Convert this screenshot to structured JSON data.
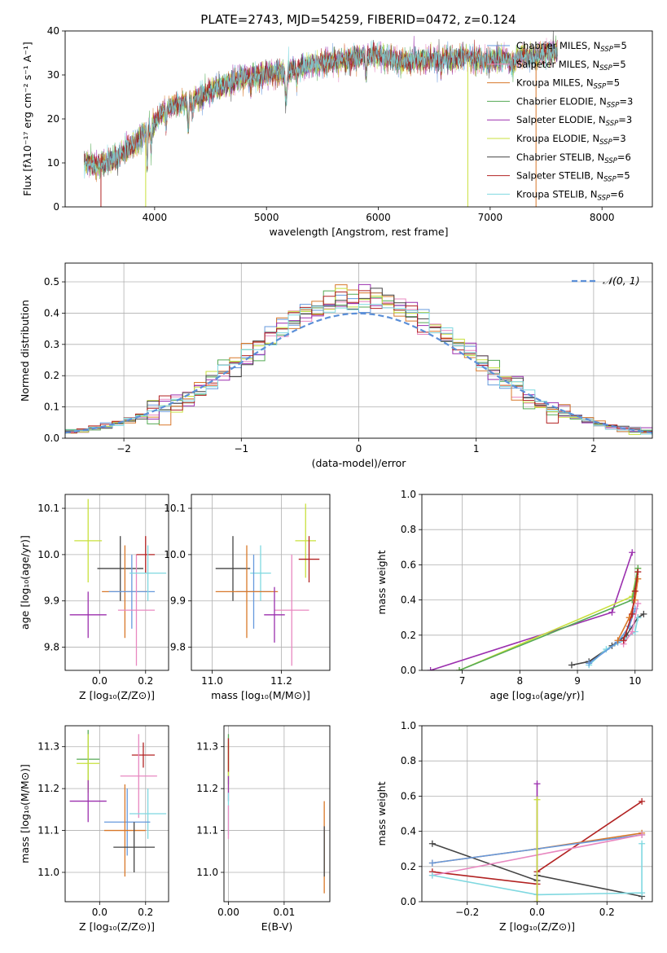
{
  "figure": {
    "title": "PLATE=2743, MJD=54259, FIBERID=0472, z=0.124"
  },
  "colors": {
    "Chabrier MILES": "#6699dd",
    "Salpeter MILES": "#e888c0",
    "Kroupa MILES": "#d8782a",
    "Chabrier ELODIE": "#55aa55",
    "Salpeter ELODIE": "#9b2fae",
    "Kroupa ELODIE": "#c8e03c",
    "Chabrier STELIB": "#444444",
    "Salpeter STELIB": "#b22222",
    "Kroupa STELIB": "#7fd8e0"
  },
  "chart_data": [
    {
      "type": "line",
      "xlabel": "wavelength [Angstrom, rest frame]",
      "ylabel": "Flux [fλ10⁻¹⁷ erg cm⁻² s⁻¹ A⁻¹]",
      "xlim": [
        3200,
        8450
      ],
      "ylim": [
        0,
        40
      ],
      "xticks": [
        4000,
        5000,
        6000,
        7000,
        8000
      ],
      "yticks": [
        0,
        10,
        20,
        30,
        40
      ],
      "legend_position": "top-right",
      "legend": [
        {
          "name": "Chabrier MILES",
          "label": "Chabrier MILES, N",
          "sub": "SSP",
          "tail": "=5"
        },
        {
          "name": "Salpeter MILES",
          "label": "Salpeter MILES, N",
          "sub": "SSP",
          "tail": "=5"
        },
        {
          "name": "Kroupa MILES",
          "label": "Kroupa MILES, N",
          "sub": "SSP",
          "tail": "=5"
        },
        {
          "name": "Chabrier ELODIE",
          "label": "Chabrier ELODIE, N",
          "sub": "SSP",
          "tail": "=3"
        },
        {
          "name": "Salpeter ELODIE",
          "label": "Salpeter ELODIE, N",
          "sub": "SSP",
          "tail": "=3"
        },
        {
          "name": "Kroupa ELODIE",
          "label": "Kroupa ELODIE, N",
          "sub": "SSP",
          "tail": "=3"
        },
        {
          "name": "Chabrier STELIB",
          "label": "Chabrier STELIB, N",
          "sub": "SSP",
          "tail": "=6"
        },
        {
          "name": "Salpeter STELIB",
          "label": "Salpeter STELIB, N",
          "sub": "SSP",
          "tail": "=5"
        },
        {
          "name": "Kroupa STELIB",
          "label": "Kroupa STELIB, N",
          "sub": "SSP",
          "tail": "=6"
        }
      ],
      "continuum": {
        "x": [
          3370,
          3500,
          3650,
          3750,
          3850,
          3950,
          4050,
          4150,
          4300,
          4400,
          4600,
          4800,
          5000,
          5200,
          5400,
          5600,
          5800,
          6000,
          6200,
          6400,
          6600,
          6800,
          7000,
          7200,
          7300,
          7400,
          7500,
          7600
        ],
        "y": [
          10,
          9.5,
          11,
          13,
          15,
          17.5,
          21,
          23,
          24,
          25,
          27.5,
          29.5,
          30,
          31,
          32.5,
          33,
          34,
          34.5,
          33,
          33.5,
          33.5,
          34,
          33,
          34,
          34.5,
          34,
          35,
          35.5
        ]
      },
      "cutoffs": [
        {
          "series": "Salpeter STELIB",
          "x": 3520
        },
        {
          "series": "Kroupa ELODIE",
          "x": 3920
        },
        {
          "series": "Kroupa ELODIE",
          "x": 6800
        },
        {
          "series": "Kroupa MILES",
          "x": 7410
        }
      ]
    },
    {
      "type": "step-histogram",
      "xlabel": "(data-model)/error",
      "ylabel": "Normed distribution",
      "xlim": [
        -2.5,
        2.5
      ],
      "ylim": [
        0,
        0.56
      ],
      "xticks": [
        -2,
        -1,
        0,
        1,
        2
      ],
      "yticks": [
        0.0,
        0.1,
        0.2,
        0.3,
        0.4,
        0.5
      ],
      "bin_width": 0.1,
      "legend_position": "top-right",
      "legend": [
        {
          "name": "N(0,1)",
          "label": "𝒩(0, 1)"
        }
      ],
      "reference_curve": {
        "name": "N(0,1)",
        "mean": 0,
        "sigma": 1,
        "style": "dashed"
      }
    },
    {
      "type": "scatter-errorbar",
      "xlabel": "Z [log₁₀(Z/Z⊙)]",
      "ylabel": "age  [log₁₀(age/yr)]",
      "xlim": [
        -0.15,
        0.3
      ],
      "ylim": [
        9.75,
        10.13
      ],
      "xticks": [
        0.0,
        0.2
      ],
      "yticks": [
        9.8,
        9.9,
        10.0,
        10.1
      ],
      "points": [
        {
          "series": "Kroupa ELODIE",
          "x": -0.05,
          "xerr": 0.06,
          "y": 10.03,
          "yerr": 0.09
        },
        {
          "series": "Salpeter ELODIE",
          "x": -0.05,
          "xerr": 0.08,
          "y": 9.87,
          "yerr": 0.05
        },
        {
          "series": "Chabrier STELIB",
          "x": 0.09,
          "xerr": 0.1,
          "y": 9.97,
          "yerr": 0.07
        },
        {
          "series": "Kroupa MILES",
          "x": 0.11,
          "xerr": 0.1,
          "y": 9.92,
          "yerr": 0.1
        },
        {
          "series": "Chabrier MILES",
          "x": 0.14,
          "xerr": 0.1,
          "y": 9.92,
          "yerr": 0.08
        },
        {
          "series": "Salpeter MILES",
          "x": 0.16,
          "xerr": 0.08,
          "y": 9.88,
          "yerr": 0.12
        },
        {
          "series": "Salpeter STELIB",
          "x": 0.2,
          "xerr": 0.04,
          "y": 10.0,
          "yerr": 0.04
        },
        {
          "series": "Kroupa STELIB",
          "x": 0.21,
          "xerr": 0.08,
          "y": 9.96,
          "yerr": 0.06
        }
      ]
    },
    {
      "type": "scatter-errorbar",
      "xlabel": "mass [log₁₀(M/M⊙)]",
      "ylabel": "",
      "xlim": [
        10.94,
        11.34
      ],
      "ylim": [
        9.75,
        10.13
      ],
      "xticks": [
        11.0,
        11.2
      ],
      "yticks": [
        9.8,
        9.9,
        10.0,
        10.1
      ],
      "points": [
        {
          "series": "Kroupa ELODIE",
          "x": 11.27,
          "xerr": 0.03,
          "y": 10.03,
          "yerr": 0.08
        },
        {
          "series": "Salpeter STELIB",
          "x": 11.28,
          "xerr": 0.03,
          "y": 9.99,
          "yerr": 0.05
        },
        {
          "series": "Chabrier STELIB",
          "x": 11.06,
          "xerr": 0.05,
          "y": 9.97,
          "yerr": 0.07
        },
        {
          "series": "Kroupa STELIB",
          "x": 11.14,
          "xerr": 0.03,
          "y": 9.96,
          "yerr": 0.06
        },
        {
          "series": "Chabrier MILES",
          "x": 11.12,
          "xerr": 0.05,
          "y": 9.92,
          "yerr": 0.08
        },
        {
          "series": "Kroupa MILES",
          "x": 11.1,
          "xerr": 0.09,
          "y": 9.92,
          "yerr": 0.1
        },
        {
          "series": "Salpeter MILES",
          "x": 11.23,
          "xerr": 0.05,
          "y": 9.88,
          "yerr": 0.12
        },
        {
          "series": "Salpeter ELODIE",
          "x": 11.18,
          "xerr": 0.03,
          "y": 9.87,
          "yerr": 0.06
        }
      ]
    },
    {
      "type": "line",
      "xlabel": "age  [log₁₀(age/yr)]",
      "ylabel": "mass weight",
      "xlim": [
        6.3,
        10.3
      ],
      "ylim": [
        0,
        1
      ],
      "xticks": [
        7,
        8,
        9,
        10
      ],
      "yticks": [
        0.0,
        0.2,
        0.4,
        0.6,
        0.8,
        1.0
      ],
      "series": [
        {
          "name": "Salpeter ELODIE",
          "x": [
            6.45,
            9.6,
            9.95
          ],
          "y": [
            0.0,
            0.33,
            0.67
          ]
        },
        {
          "name": "Kroupa ELODIE",
          "x": [
            6.95,
            9.95,
            10.05
          ],
          "y": [
            0.0,
            0.42,
            0.58
          ]
        },
        {
          "name": "Chabrier ELODIE",
          "x": [
            6.95,
            9.95,
            10.05
          ],
          "y": [
            0.0,
            0.4,
            0.58
          ]
        },
        {
          "name": "Chabrier STELIB",
          "x": [
            8.9,
            9.2,
            9.6,
            9.85,
            10.05,
            10.15
          ],
          "y": [
            0.03,
            0.05,
            0.14,
            0.2,
            0.3,
            0.32
          ]
        },
        {
          "name": "Kroupa STELIB",
          "x": [
            9.2,
            9.5,
            9.8,
            10.0,
            10.05
          ],
          "y": [
            0.03,
            0.12,
            0.17,
            0.22,
            0.3
          ]
        },
        {
          "name": "Chabrier MILES",
          "x": [
            9.2,
            9.7,
            9.9,
            10.0
          ],
          "y": [
            0.04,
            0.16,
            0.25,
            0.35
          ]
        },
        {
          "name": "Kroupa MILES",
          "x": [
            9.7,
            9.9,
            10.0,
            10.05
          ],
          "y": [
            0.17,
            0.3,
            0.4,
            0.52
          ]
        },
        {
          "name": "Salpeter MILES",
          "x": [
            9.8,
            9.95,
            10.05
          ],
          "y": [
            0.15,
            0.22,
            0.38
          ]
        },
        {
          "name": "Salpeter STELIB",
          "x": [
            9.8,
            9.95,
            10.0,
            10.05
          ],
          "y": [
            0.17,
            0.32,
            0.45,
            0.56
          ]
        }
      ]
    },
    {
      "type": "scatter-errorbar",
      "xlabel": "Z [log₁₀(Z/Z⊙)]",
      "ylabel": "mass [log₁₀(M/M⊙)]",
      "xlim": [
        -0.15,
        0.3
      ],
      "ylim": [
        10.93,
        11.35
      ],
      "xticks": [
        0.0,
        0.2
      ],
      "yticks": [
        11.0,
        11.1,
        11.2,
        11.3
      ],
      "points": [
        {
          "series": "Chabrier ELODIE",
          "x": -0.05,
          "xerr": 0.05,
          "y": 11.27,
          "yerr": 0.07
        },
        {
          "series": "Kroupa ELODIE",
          "x": -0.05,
          "xerr": 0.05,
          "y": 11.26,
          "yerr": 0.07
        },
        {
          "series": "Salpeter ELODIE",
          "x": -0.05,
          "xerr": 0.08,
          "y": 11.17,
          "yerr": 0.05
        },
        {
          "series": "Salpeter STELIB",
          "x": 0.19,
          "xerr": 0.05,
          "y": 11.28,
          "yerr": 0.03
        },
        {
          "series": "Salpeter MILES",
          "x": 0.17,
          "xerr": 0.08,
          "y": 11.23,
          "yerr": 0.1
        },
        {
          "series": "Kroupa STELIB",
          "x": 0.21,
          "xerr": 0.08,
          "y": 11.14,
          "yerr": 0.06
        },
        {
          "series": "Chabrier MILES",
          "x": 0.12,
          "xerr": 0.1,
          "y": 11.12,
          "yerr": 0.08
        },
        {
          "series": "Kroupa MILES",
          "x": 0.11,
          "xerr": 0.09,
          "y": 11.1,
          "yerr": 0.11
        },
        {
          "series": "Chabrier STELIB",
          "x": 0.15,
          "xerr": 0.09,
          "y": 11.06,
          "yerr": 0.06
        }
      ]
    },
    {
      "type": "scatter-errorbar",
      "xlabel": "E(B-V)",
      "ylabel": "",
      "xlim": [
        -0.0008,
        0.0182
      ],
      "ylim": [
        10.93,
        11.35
      ],
      "xticks": [
        0.0,
        0.01
      ],
      "yticks": [
        11.0,
        11.1,
        11.2,
        11.3
      ],
      "points": [
        {
          "series": "Chabrier ELODIE",
          "x": 0.0,
          "xerr": 0.0,
          "y": 11.27,
          "yerr": 0.06
        },
        {
          "series": "Kroupa ELODIE",
          "x": 0.0,
          "xerr": 0.0,
          "y": 11.25,
          "yerr": 0.06
        },
        {
          "series": "Salpeter STELIB",
          "x": 0.0,
          "xerr": 0.0,
          "y": 11.28,
          "yerr": 0.04
        },
        {
          "series": "Salpeter ELODIE",
          "x": 0.0,
          "xerr": 0.0,
          "y": 11.2,
          "yerr": 0.03
        },
        {
          "series": "Kroupa STELIB",
          "x": 0.0,
          "xerr": 0.0,
          "y": 11.14,
          "yerr": 0.05
        },
        {
          "series": "Salpeter MILES",
          "x": 0.0,
          "xerr": 0.0,
          "y": 11.12,
          "yerr": 0.04
        },
        {
          "series": "Kroupa MILES",
          "x": 0.0172,
          "xerr": 0.0,
          "y": 11.06,
          "yerr": 0.11
        },
        {
          "series": "Chabrier STELIB",
          "x": 0.0172,
          "xerr": 0.0,
          "y": 11.05,
          "yerr": 0.06
        }
      ]
    },
    {
      "type": "line",
      "xlabel": "Z [log₁₀(Z/Z⊙)]",
      "ylabel": "mass weight",
      "xlim": [
        -0.33,
        0.33
      ],
      "ylim": [
        0,
        1
      ],
      "xticks": [
        -0.2,
        0.0,
        0.2
      ],
      "yticks": [
        0.0,
        0.2,
        0.4,
        0.6,
        0.8,
        1.0
      ],
      "series": [
        {
          "name": "Chabrier STELIB",
          "x": [
            -0.3,
            0.0,
            0.0,
            0.3
          ],
          "y": [
            0.33,
            0.12,
            0.15,
            0.03
          ]
        },
        {
          "name": "Salpeter STELIB",
          "x": [
            -0.3,
            0.0,
            0.0,
            0.3
          ],
          "y": [
            0.17,
            0.1,
            0.17,
            0.57
          ]
        },
        {
          "name": "Kroupa MILES",
          "x": [
            -0.3,
            0.0,
            0.3
          ],
          "y": [
            0.22,
            0.3,
            0.39
          ]
        },
        {
          "name": "Chabrier MILES",
          "x": [
            -0.3,
            0.3
          ],
          "y": [
            0.22,
            0.38
          ]
        },
        {
          "name": "Salpeter MILES",
          "x": [
            -0.3,
            0.3
          ],
          "y": [
            0.15,
            0.38
          ]
        },
        {
          "name": "Kroupa STELIB",
          "x": [
            -0.3,
            0.0,
            0.3,
            0.3
          ],
          "y": [
            0.15,
            0.04,
            0.05,
            0.33
          ]
        },
        {
          "name": "Salpeter ELODIE",
          "x": [
            0.0,
            0.0
          ],
          "y": [
            0.0,
            0.67
          ]
        },
        {
          "name": "Kroupa ELODIE",
          "x": [
            0.0,
            0.0
          ],
          "y": [
            0.0,
            0.58
          ]
        }
      ]
    }
  ]
}
